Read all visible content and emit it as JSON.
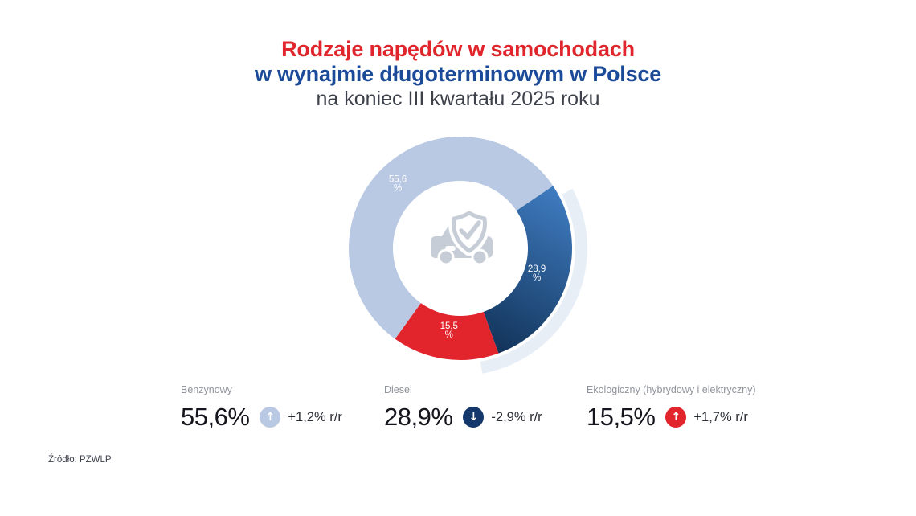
{
  "title": {
    "line1": "Rodzaje napędów w samochodach",
    "line2": "w wynajmie długoterminowym w Polsce",
    "line3": "na koniec III kwartału 2025 roku"
  },
  "source": "Źródło: PZWLP",
  "chart_data": {
    "type": "pie",
    "subtype": "donut",
    "title": "Rodzaje napędów w samochodach w wynajmie długoterminowym w Polsce na koniec III kwartału 2025 roku",
    "unit": "%",
    "start_angle_deg": 56,
    "segments": [
      {
        "label": "Diesel",
        "value": 28.9,
        "display": "28,9",
        "gradient": [
          "#3e7abe",
          "#113257"
        ],
        "highlighted": true
      },
      {
        "label": "Ekologiczny (hybrydowy i elektryczny)",
        "value": 15.5,
        "display": "15,5",
        "color": "#e2242c"
      },
      {
        "label": "Benzynowy",
        "value": 55.6,
        "display": "55,6",
        "color": "#b9c9e3"
      }
    ],
    "highlight_arc_color": "#e8eef6",
    "center_icon": "car-shield-check",
    "center_icon_color": "#c6cdd7"
  },
  "stats": [
    {
      "label": "Benzynowy",
      "value": "55,6%",
      "change": "+1,2% r/r",
      "direction": "up",
      "arrow": "↑",
      "badge_color": "#b9c9e3"
    },
    {
      "label": "Diesel",
      "value": "28,9%",
      "change": "-2,9% r/r",
      "direction": "down",
      "arrow": "↓",
      "badge_color": "#14386b"
    },
    {
      "label": "Ekologiczny (hybrydowy i elektryczny)",
      "value": "15,5%",
      "change": "+1,7% r/r",
      "direction": "up",
      "arrow": "↑",
      "badge_color": "#e2242c"
    }
  ]
}
